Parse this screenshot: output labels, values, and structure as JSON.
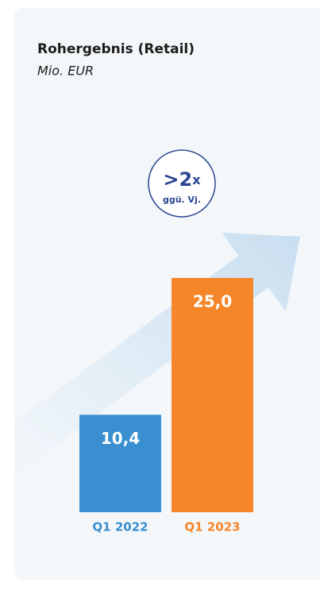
{
  "chart_data": {
    "type": "bar",
    "title": "Rohergebnis (Retail)",
    "subtitle": "Mio. EUR",
    "annotation": {
      "main": ">2",
      "suffix": "x",
      "note": "ggü. Vj."
    },
    "categories": [
      "Q1 2022",
      "Q1 2023"
    ],
    "values": [
      10.4,
      25.0
    ],
    "value_labels": [
      "10,4",
      "25,0"
    ],
    "colors": [
      "#3a8fd0",
      "#f5862a"
    ]
  }
}
